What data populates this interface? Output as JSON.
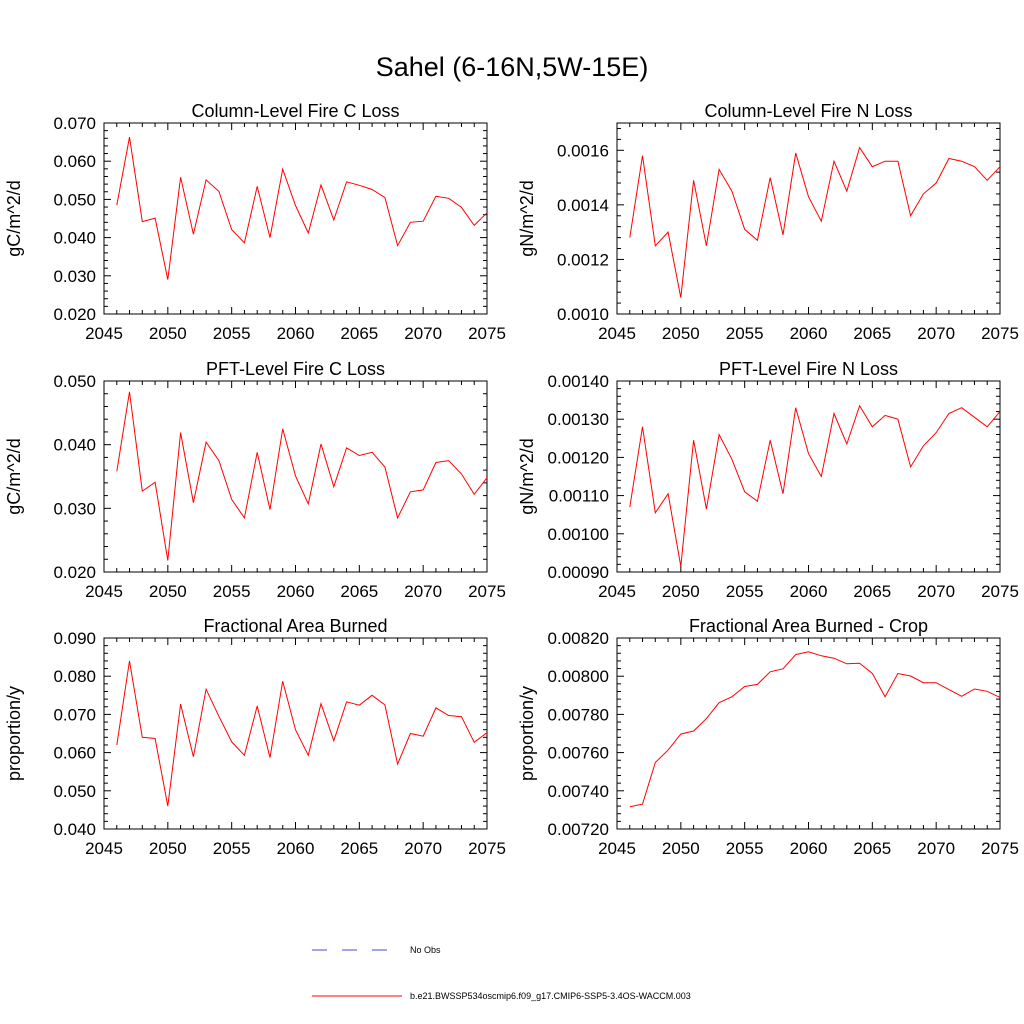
{
  "page_title": "Sahel (6-16N,5W-15E)",
  "colors": {
    "series": "#ff0000",
    "obs": "#4a4ad8",
    "axis": "#000000"
  },
  "legend": {
    "obs_label": "No Obs",
    "model_label": "b.e21.BWSSP534oscmip6.f09_g17.CMIP6-SSP5-3.4OS-WACCM.003"
  },
  "chart_data": [
    {
      "type": "line",
      "title": "Column-Level Fire C Loss",
      "ylabel": "gC/m^2/d",
      "xlabel": "",
      "xlim": [
        2045,
        2075
      ],
      "ylim": [
        0.02,
        0.07
      ],
      "xticks": [
        2045,
        2050,
        2055,
        2060,
        2065,
        2070,
        2075
      ],
      "yticks": [
        0.02,
        0.03,
        0.04,
        0.05,
        0.06,
        0.07
      ],
      "ytick_labels": [
        "0.020",
        "0.030",
        "0.040",
        "0.050",
        "0.060",
        "0.070"
      ],
      "x": [
        2046,
        2047,
        2048,
        2049,
        2050,
        2051,
        2052,
        2053,
        2054,
        2055,
        2056,
        2057,
        2058,
        2059,
        2060,
        2061,
        2062,
        2063,
        2064,
        2065,
        2066,
        2067,
        2068,
        2069,
        2070,
        2071,
        2072,
        2073,
        2074,
        2075
      ],
      "series": [
        {
          "name": "b.e21.BWSSP534oscmip6.f09_g17.CMIP6-SSP5-3.4OS-WACCM.003",
          "values": [
            0.0485,
            0.0663,
            0.0442,
            0.0451,
            0.029,
            0.0558,
            0.0409,
            0.0551,
            0.0521,
            0.0421,
            0.0386,
            0.0534,
            0.04,
            0.0579,
            0.0484,
            0.0412,
            0.0538,
            0.0446,
            0.0546,
            0.0537,
            0.0526,
            0.0505,
            0.0379,
            0.044,
            0.0443,
            0.0508,
            0.0503,
            0.0479,
            0.0432,
            0.0465
          ]
        }
      ]
    },
    {
      "type": "line",
      "title": "Column-Level Fire N Loss",
      "ylabel": "gN/m^2/d",
      "xlabel": "",
      "xlim": [
        2045,
        2075
      ],
      "ylim": [
        0.001,
        0.0017
      ],
      "xticks": [
        2045,
        2050,
        2055,
        2060,
        2065,
        2070,
        2075
      ],
      "yticks": [
        0.001,
        0.0012,
        0.0014,
        0.0016
      ],
      "ytick_labels": [
        "0.0010",
        "0.0012",
        "0.0014",
        "0.0016"
      ],
      "x": [
        2046,
        2047,
        2048,
        2049,
        2050,
        2051,
        2052,
        2053,
        2054,
        2055,
        2056,
        2057,
        2058,
        2059,
        2060,
        2061,
        2062,
        2063,
        2064,
        2065,
        2066,
        2067,
        2068,
        2069,
        2070,
        2071,
        2072,
        2073,
        2074,
        2075
      ],
      "series": [
        {
          "name": "b.e21.BWSSP534oscmip6.f09_g17.CMIP6-SSP5-3.4OS-WACCM.003",
          "values": [
            0.00128,
            0.00158,
            0.00125,
            0.0013,
            0.00106,
            0.00149,
            0.00125,
            0.00153,
            0.00145,
            0.00131,
            0.00127,
            0.0015,
            0.00129,
            0.00159,
            0.00143,
            0.00134,
            0.00156,
            0.00145,
            0.00161,
            0.00154,
            0.00156,
            0.00156,
            0.00136,
            0.00144,
            0.00148,
            0.00157,
            0.00156,
            0.00154,
            0.00149,
            0.00154
          ]
        }
      ]
    },
    {
      "type": "line",
      "title": "PFT-Level Fire C Loss",
      "ylabel": "gC/m^2/d",
      "xlabel": "",
      "xlim": [
        2045,
        2075
      ],
      "ylim": [
        0.02,
        0.05
      ],
      "xticks": [
        2045,
        2050,
        2055,
        2060,
        2065,
        2070,
        2075
      ],
      "yticks": [
        0.02,
        0.03,
        0.04,
        0.05
      ],
      "ytick_labels": [
        "0.020",
        "0.030",
        "0.040",
        "0.050"
      ],
      "x": [
        2046,
        2047,
        2048,
        2049,
        2050,
        2051,
        2052,
        2053,
        2054,
        2055,
        2056,
        2057,
        2058,
        2059,
        2060,
        2061,
        2062,
        2063,
        2064,
        2065,
        2066,
        2067,
        2068,
        2069,
        2070,
        2071,
        2072,
        2073,
        2074,
        2075
      ],
      "series": [
        {
          "name": "b.e21.BWSSP534oscmip6.f09_g17.CMIP6-SSP5-3.4OS-WACCM.003",
          "values": [
            0.0358,
            0.0483,
            0.0327,
            0.0341,
            0.0218,
            0.0419,
            0.0309,
            0.0404,
            0.0375,
            0.0314,
            0.0285,
            0.0388,
            0.0298,
            0.0425,
            0.0351,
            0.0307,
            0.0401,
            0.0334,
            0.0395,
            0.0383,
            0.0388,
            0.0365,
            0.0285,
            0.0326,
            0.0329,
            0.0372,
            0.0375,
            0.0354,
            0.0322,
            0.0348
          ]
        }
      ]
    },
    {
      "type": "line",
      "title": "PFT-Level Fire N Loss",
      "ylabel": "gN/m^2/d",
      "xlabel": "",
      "xlim": [
        2045,
        2075
      ],
      "ylim": [
        0.0009,
        0.0014
      ],
      "xticks": [
        2045,
        2050,
        2055,
        2060,
        2065,
        2070,
        2075
      ],
      "yticks": [
        0.0009,
        0.001,
        0.0011,
        0.0012,
        0.0013,
        0.0014
      ],
      "ytick_labels": [
        "0.00090",
        "0.00100",
        "0.00110",
        "0.00120",
        "0.00130",
        "0.00140"
      ],
      "x": [
        2046,
        2047,
        2048,
        2049,
        2050,
        2051,
        2052,
        2053,
        2054,
        2055,
        2056,
        2057,
        2058,
        2059,
        2060,
        2061,
        2062,
        2063,
        2064,
        2065,
        2066,
        2067,
        2068,
        2069,
        2070,
        2071,
        2072,
        2073,
        2074,
        2075
      ],
      "series": [
        {
          "name": "b.e21.BWSSP534oscmip6.f09_g17.CMIP6-SSP5-3.4OS-WACCM.003",
          "values": [
            0.00107,
            0.00128,
            0.001055,
            0.001105,
            0.000915,
            0.001245,
            0.001065,
            0.00126,
            0.001195,
            0.00111,
            0.001085,
            0.001245,
            0.001105,
            0.00133,
            0.00121,
            0.00115,
            0.001315,
            0.001235,
            0.001335,
            0.00128,
            0.00131,
            0.0013,
            0.001175,
            0.00123,
            0.001265,
            0.001315,
            0.00133,
            0.001305,
            0.00128,
            0.00132
          ]
        }
      ]
    },
    {
      "type": "line",
      "title": "Fractional Area Burned",
      "ylabel": "proportion/y",
      "xlabel": "",
      "xlim": [
        2045,
        2075
      ],
      "ylim": [
        0.04,
        0.09
      ],
      "xticks": [
        2045,
        2050,
        2055,
        2060,
        2065,
        2070,
        2075
      ],
      "yticks": [
        0.04,
        0.05,
        0.06,
        0.07,
        0.08,
        0.09
      ],
      "ytick_labels": [
        "0.040",
        "0.050",
        "0.060",
        "0.070",
        "0.080",
        "0.090"
      ],
      "x": [
        2046,
        2047,
        2048,
        2049,
        2050,
        2051,
        2052,
        2053,
        2054,
        2055,
        2056,
        2057,
        2058,
        2059,
        2060,
        2061,
        2062,
        2063,
        2064,
        2065,
        2066,
        2067,
        2068,
        2069,
        2070,
        2071,
        2072,
        2073,
        2074,
        2075
      ],
      "series": [
        {
          "name": "b.e21.BWSSP534oscmip6.f09_g17.CMIP6-SSP5-3.4OS-WACCM.003",
          "values": [
            0.062,
            0.084,
            0.064,
            0.0637,
            0.046,
            0.0727,
            0.0589,
            0.0766,
            0.0695,
            0.0628,
            0.0593,
            0.0722,
            0.0587,
            0.0787,
            0.066,
            0.0593,
            0.0728,
            0.0631,
            0.0733,
            0.0724,
            0.075,
            0.0725,
            0.057,
            0.065,
            0.0643,
            0.0717,
            0.0697,
            0.0694,
            0.0627,
            0.0652
          ]
        }
      ]
    },
    {
      "type": "line",
      "title": "Fractional Area Burned - Crop",
      "ylabel": "proportion/y",
      "xlabel": "",
      "xlim": [
        2045,
        2075
      ],
      "ylim": [
        0.0072,
        0.0082
      ],
      "xticks": [
        2045,
        2050,
        2055,
        2060,
        2065,
        2070,
        2075
      ],
      "yticks": [
        0.0072,
        0.0074,
        0.0076,
        0.0078,
        0.008,
        0.0082
      ],
      "ytick_labels": [
        "0.00720",
        "0.00740",
        "0.00760",
        "0.00780",
        "0.00800",
        "0.00820"
      ],
      "x": [
        2046,
        2047,
        2048,
        2049,
        2050,
        2051,
        2052,
        2053,
        2054,
        2055,
        2056,
        2057,
        2058,
        2059,
        2060,
        2061,
        2062,
        2063,
        2064,
        2065,
        2066,
        2067,
        2068,
        2069,
        2070,
        2071,
        2072,
        2073,
        2074,
        2075
      ],
      "series": [
        {
          "name": "b.e21.BWSSP534oscmip6.f09_g17.CMIP6-SSP5-3.4OS-WACCM.003",
          "values": [
            0.007317,
            0.00733,
            0.007548,
            0.007613,
            0.007697,
            0.007713,
            0.007778,
            0.007861,
            0.007892,
            0.007946,
            0.007957,
            0.008023,
            0.008039,
            0.008113,
            0.008128,
            0.008107,
            0.008094,
            0.008065,
            0.008068,
            0.008015,
            0.007892,
            0.008014,
            0.008001,
            0.007966,
            0.007966,
            0.00793,
            0.007895,
            0.007933,
            0.007921,
            0.007889
          ]
        }
      ]
    }
  ]
}
